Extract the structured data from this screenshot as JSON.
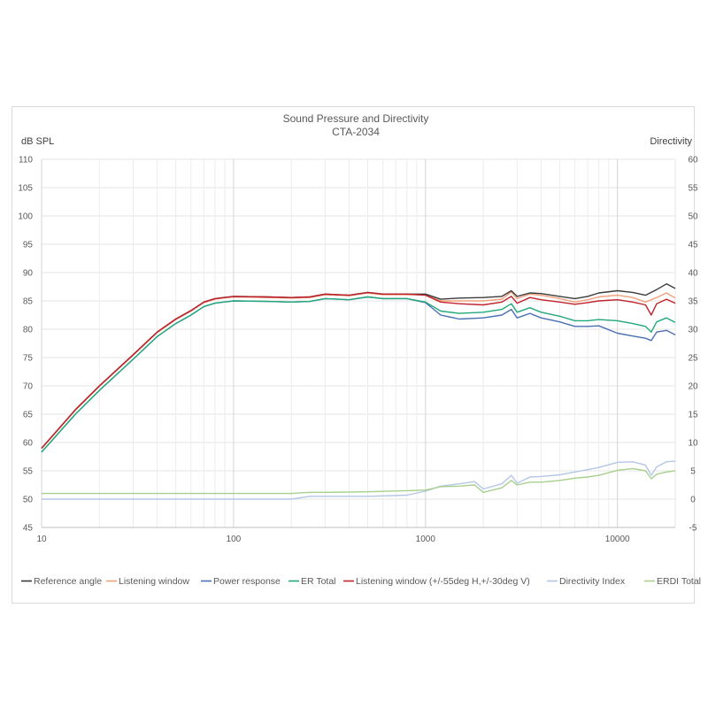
{
  "chart_data": {
    "type": "line",
    "title": "Sound Pressure and Directivity",
    "subtitle": "CTA-2034",
    "ylabel": "dB SPL",
    "y2label": "Directivity",
    "xscale": "log",
    "xlim": [
      10,
      20000
    ],
    "ylim": [
      45,
      110
    ],
    "y2lim": [
      -5,
      60
    ],
    "x_ticks": [
      10,
      100,
      1000,
      10000
    ],
    "y_ticks": [
      45,
      50,
      55,
      60,
      65,
      70,
      75,
      80,
      85,
      90,
      95,
      100,
      105,
      110
    ],
    "y2_ticks": [
      -5,
      0,
      5,
      10,
      15,
      20,
      25,
      30,
      35,
      40,
      45,
      50,
      55,
      60
    ],
    "grid": true,
    "legend_position": "bottom",
    "series": [
      {
        "name": "Reference angle",
        "color": "#3b3b3b",
        "axis": "left",
        "x": [
          10,
          15,
          20,
          30,
          40,
          50,
          60,
          70,
          80,
          100,
          150,
          200,
          250,
          300,
          400,
          500,
          600,
          800,
          1000,
          1200,
          1500,
          2000,
          2500,
          2800,
          3000,
          3500,
          4000,
          5000,
          6000,
          7000,
          8000,
          10000,
          12000,
          14000,
          16000,
          18000,
          20000
        ],
        "y": [
          59.0,
          65.8,
          70.0,
          75.5,
          79.5,
          81.8,
          83.3,
          84.8,
          85.4,
          85.8,
          85.7,
          85.6,
          85.7,
          86.2,
          86.0,
          86.5,
          86.2,
          86.2,
          86.2,
          85.3,
          85.5,
          85.6,
          85.8,
          86.8,
          85.8,
          86.4,
          86.3,
          85.8,
          85.4,
          85.8,
          86.4,
          86.8,
          86.5,
          86.0,
          87.0,
          88.0,
          87.2
        ]
      },
      {
        "name": "Listening window",
        "color": "#f0a07a",
        "axis": "left",
        "x": [
          10,
          15,
          20,
          30,
          40,
          50,
          60,
          70,
          80,
          100,
          150,
          200,
          250,
          300,
          400,
          500,
          600,
          800,
          1000,
          1200,
          1500,
          2000,
          2500,
          2800,
          3000,
          3500,
          4000,
          5000,
          6000,
          7000,
          8000,
          10000,
          12000,
          14000,
          16000,
          18000,
          20000
        ],
        "y": [
          58.9,
          65.7,
          69.9,
          75.4,
          79.4,
          81.7,
          83.2,
          84.7,
          85.3,
          85.7,
          85.6,
          85.5,
          85.6,
          86.1,
          85.9,
          86.4,
          86.1,
          86.1,
          86.1,
          85.0,
          85.0,
          85.0,
          85.3,
          86.6,
          85.4,
          86.2,
          86.0,
          85.4,
          84.8,
          85.2,
          85.7,
          86.0,
          85.6,
          84.8,
          85.6,
          86.4,
          85.5
        ]
      },
      {
        "name": "Power response",
        "color": "#4b6fb4",
        "axis": "left",
        "x": [
          10,
          15,
          20,
          30,
          40,
          50,
          60,
          70,
          80,
          100,
          150,
          200,
          250,
          300,
          400,
          500,
          600,
          800,
          1000,
          1200,
          1500,
          2000,
          2500,
          2800,
          3000,
          3500,
          4000,
          5000,
          6000,
          7000,
          8000,
          10000,
          12000,
          14000,
          15000,
          16000,
          18000,
          20000
        ],
        "y": [
          58.3,
          65.0,
          69.2,
          74.7,
          78.7,
          81.0,
          82.5,
          84.0,
          84.6,
          85.0,
          84.9,
          84.8,
          84.9,
          85.4,
          85.2,
          85.7,
          85.4,
          85.4,
          84.7,
          82.5,
          81.8,
          82.0,
          82.5,
          83.5,
          82.0,
          82.8,
          82.0,
          81.3,
          80.5,
          80.5,
          80.6,
          79.3,
          78.8,
          78.4,
          78.0,
          79.5,
          79.8,
          79.0
        ]
      },
      {
        "name": "ER Total",
        "color": "#22a87a",
        "axis": "left",
        "x": [
          10,
          15,
          20,
          30,
          40,
          50,
          60,
          70,
          80,
          100,
          150,
          200,
          250,
          300,
          400,
          500,
          600,
          800,
          1000,
          1200,
          1500,
          2000,
          2500,
          2800,
          3000,
          3500,
          4000,
          5000,
          6000,
          7000,
          8000,
          10000,
          12000,
          14000,
          15000,
          16000,
          18000,
          20000
        ],
        "y": [
          58.3,
          65.0,
          69.2,
          74.7,
          78.7,
          81.0,
          82.5,
          84.0,
          84.6,
          85.0,
          84.9,
          84.8,
          84.9,
          85.4,
          85.2,
          85.7,
          85.4,
          85.4,
          84.8,
          83.2,
          82.8,
          83.0,
          83.5,
          84.5,
          83.0,
          83.8,
          83.0,
          82.3,
          81.5,
          81.5,
          81.7,
          81.5,
          81.0,
          80.5,
          79.5,
          81.3,
          82.0,
          81.2
        ]
      },
      {
        "name": "Listening window (+/-55deg H,+/-30deg V)",
        "color": "#c0212b",
        "axis": "left",
        "x": [
          10,
          15,
          20,
          30,
          40,
          50,
          60,
          70,
          80,
          100,
          150,
          200,
          250,
          300,
          400,
          500,
          600,
          800,
          1000,
          1200,
          1500,
          2000,
          2500,
          2800,
          3000,
          3500,
          4000,
          5000,
          6000,
          7000,
          8000,
          10000,
          12000,
          14000,
          15000,
          16000,
          18000,
          20000
        ],
        "y": [
          59.0,
          65.8,
          70.0,
          75.5,
          79.5,
          81.8,
          83.3,
          84.8,
          85.4,
          85.8,
          85.7,
          85.6,
          85.7,
          86.2,
          86.0,
          86.5,
          86.2,
          86.2,
          86.0,
          84.8,
          84.5,
          84.3,
          84.8,
          85.8,
          84.6,
          85.6,
          85.2,
          84.8,
          84.4,
          84.7,
          85.0,
          85.2,
          84.8,
          84.3,
          82.5,
          84.5,
          85.3,
          84.6
        ]
      },
      {
        "name": "Directivity Index",
        "color": "#b4c7e7",
        "axis": "right",
        "x": [
          10,
          20,
          50,
          100,
          200,
          250,
          300,
          500,
          800,
          1000,
          1200,
          1500,
          1800,
          2000,
          2500,
          2800,
          3000,
          3500,
          4000,
          5000,
          6000,
          7000,
          8000,
          10000,
          12000,
          14000,
          15000,
          16000,
          18000,
          20000
        ],
        "y": [
          0,
          0,
          0,
          0,
          0,
          0.5,
          0.5,
          0.5,
          0.7,
          1.4,
          2.3,
          2.7,
          3.1,
          1.8,
          2.7,
          4.2,
          2.8,
          3.9,
          4.0,
          4.3,
          4.8,
          5.2,
          5.6,
          6.5,
          6.6,
          6.0,
          4.2,
          5.7,
          6.6,
          6.7
        ]
      },
      {
        "name": "ERDI Total",
        "color": "#a8d08d",
        "axis": "right",
        "x": [
          10,
          20,
          50,
          100,
          200,
          250,
          300,
          500,
          800,
          1000,
          1200,
          1500,
          1800,
          2000,
          2500,
          2800,
          3000,
          3500,
          4000,
          5000,
          6000,
          7000,
          8000,
          10000,
          12000,
          14000,
          15000,
          16000,
          18000,
          20000
        ],
        "y": [
          1,
          1,
          1,
          1,
          1,
          1.2,
          1.2,
          1.3,
          1.5,
          1.6,
          2.2,
          2.3,
          2.5,
          1.2,
          2.0,
          3.3,
          2.5,
          3.0,
          3.0,
          3.3,
          3.7,
          3.9,
          4.2,
          5.1,
          5.4,
          5.0,
          3.6,
          4.4,
          4.8,
          5.0
        ]
      }
    ]
  }
}
